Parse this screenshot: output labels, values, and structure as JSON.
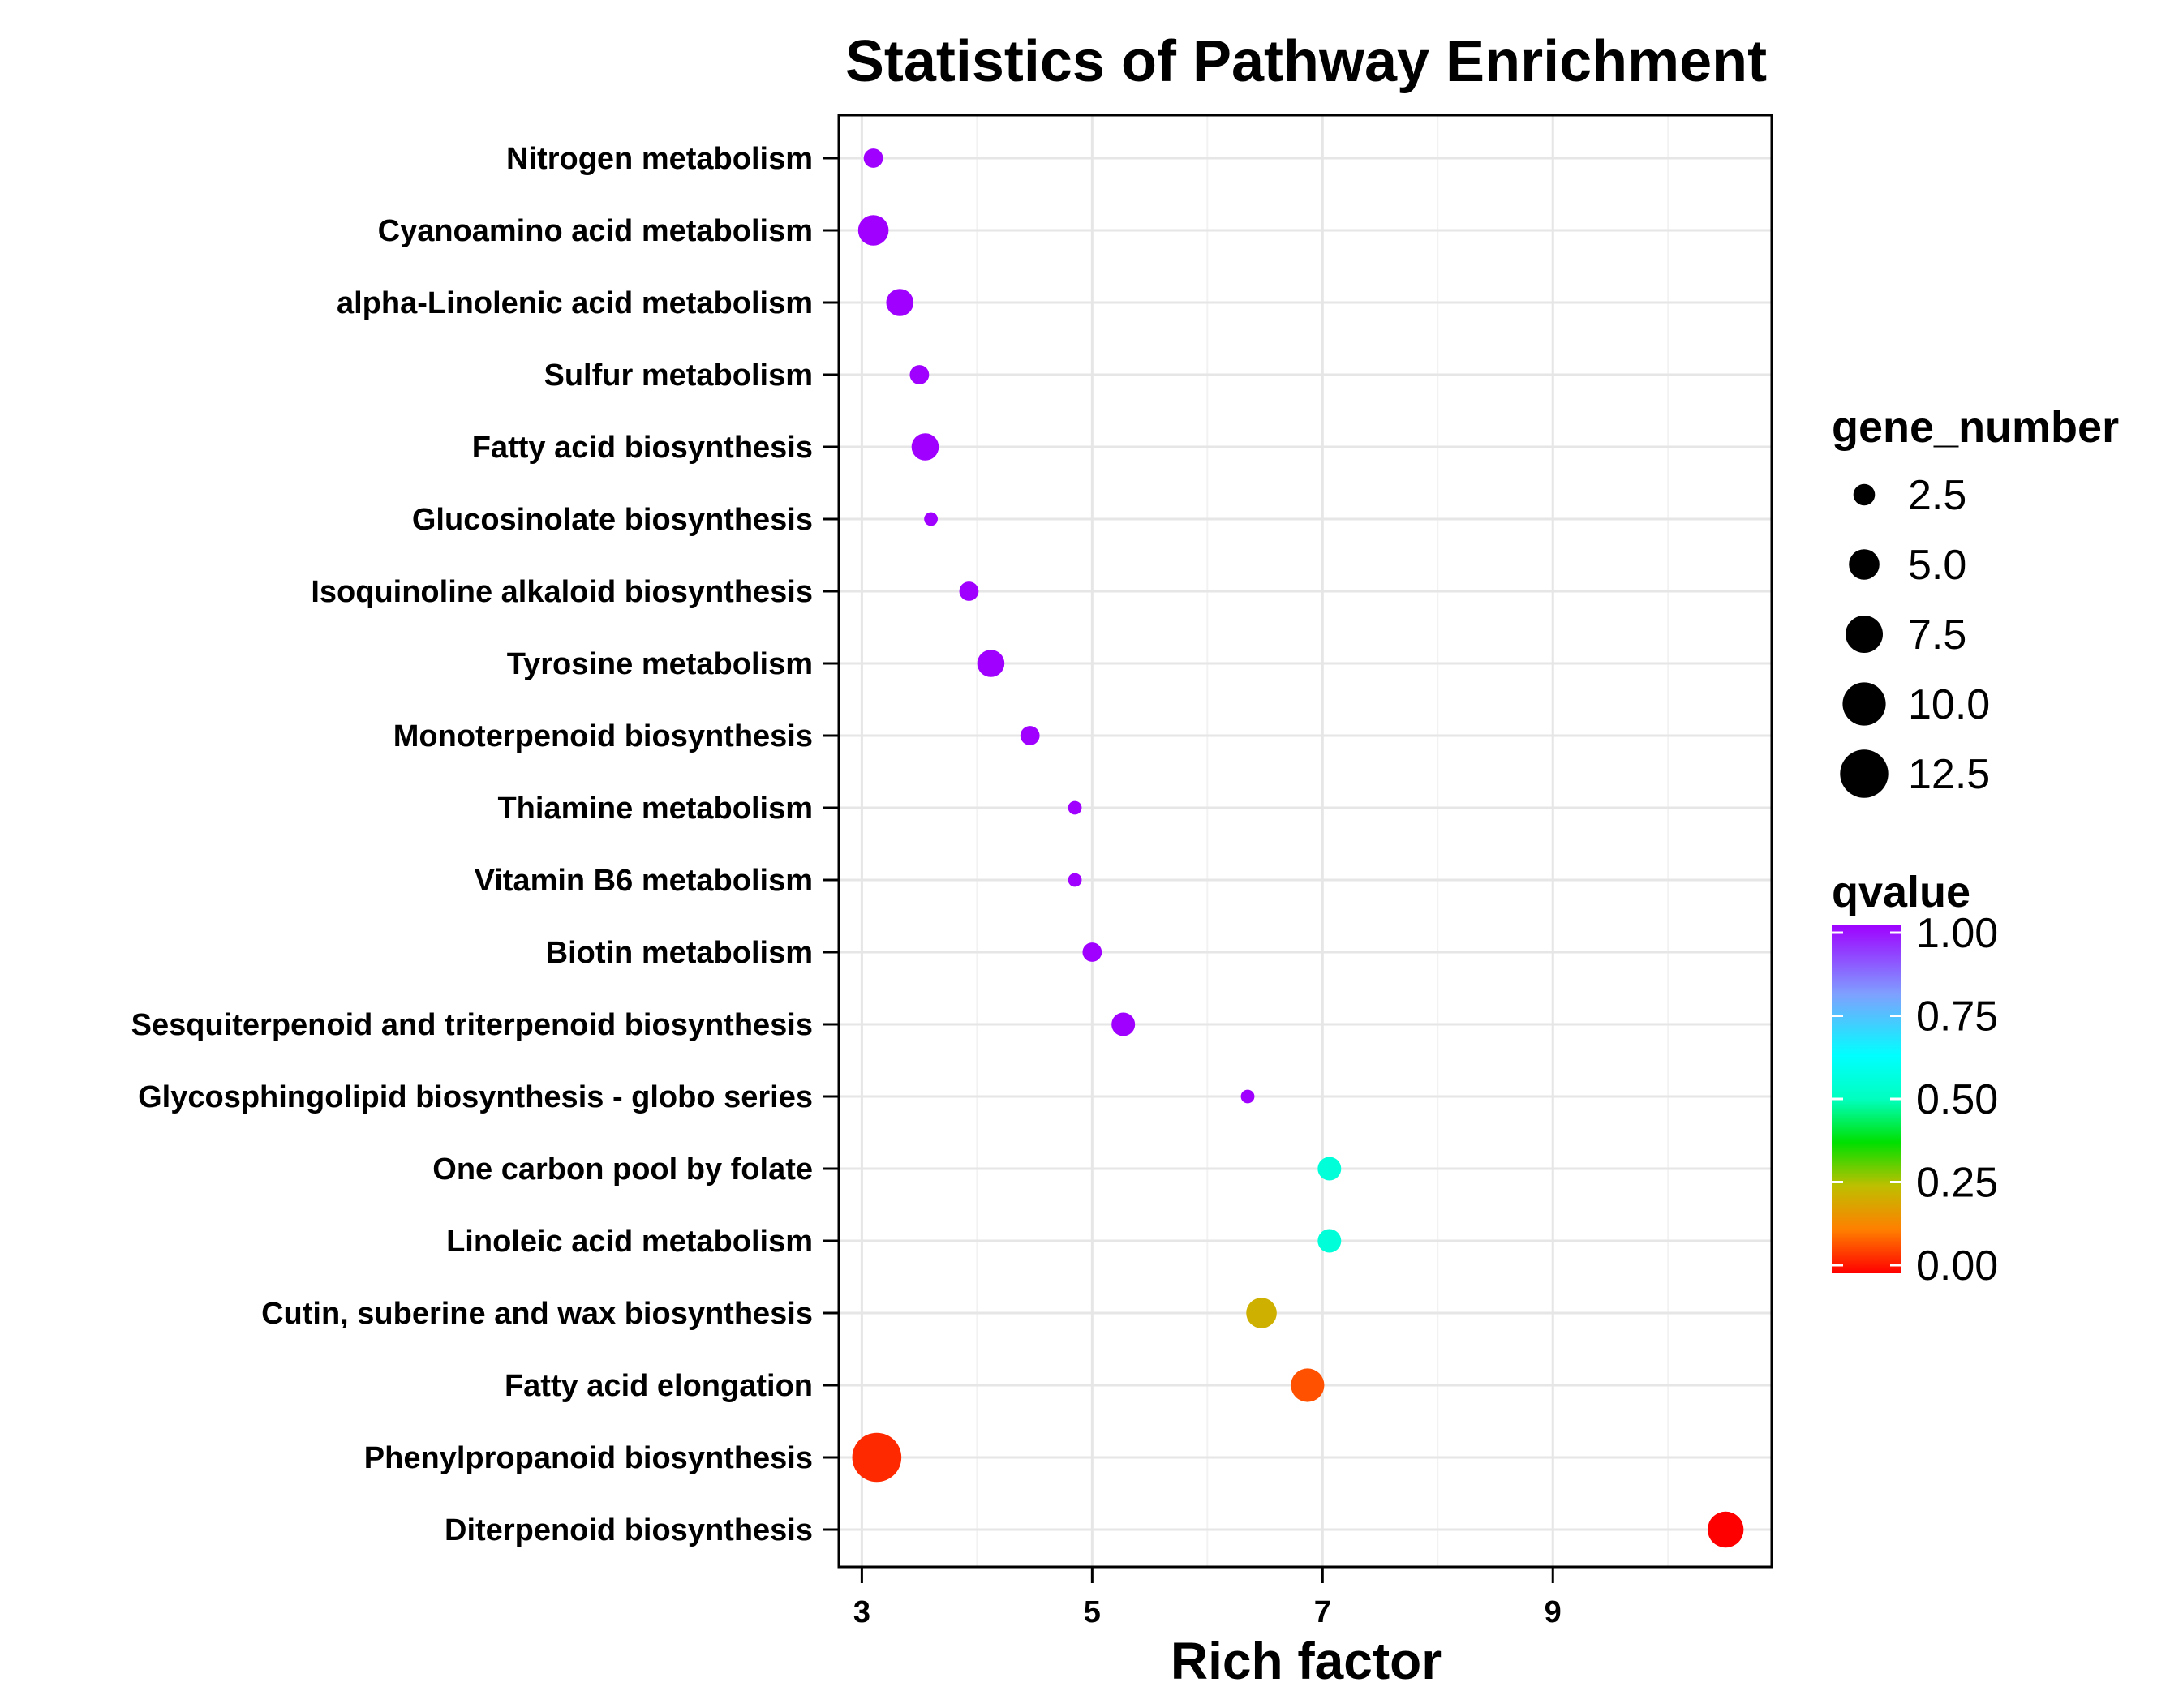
{
  "chart_data": {
    "type": "scatter",
    "title": "Statistics of Pathway Enrichment",
    "xlabel": "Rich factor",
    "ylabel": "",
    "xlim": [
      2.8,
      10.9
    ],
    "xticks": [
      3,
      5,
      7,
      9
    ],
    "grid": true,
    "points": [
      {
        "pathway": "Nitrogen metabolism",
        "rich_factor": 3.1,
        "gene_number": 2,
        "qvalue": 1.0
      },
      {
        "pathway": "Cyanoamino acid metabolism",
        "rich_factor": 3.1,
        "gene_number": 5,
        "qvalue": 1.0
      },
      {
        "pathway": "alpha-Linolenic acid metabolism",
        "rich_factor": 3.33,
        "gene_number": 4,
        "qvalue": 1.0
      },
      {
        "pathway": "Sulfur metabolism",
        "rich_factor": 3.5,
        "gene_number": 2,
        "qvalue": 1.0
      },
      {
        "pathway": "Fatty acid biosynthesis",
        "rich_factor": 3.55,
        "gene_number": 4,
        "qvalue": 1.0
      },
      {
        "pathway": "Glucosinolate biosynthesis",
        "rich_factor": 3.6,
        "gene_number": 1,
        "qvalue": 1.0
      },
      {
        "pathway": "Isoquinoline alkaloid biosynthesis",
        "rich_factor": 3.93,
        "gene_number": 2,
        "qvalue": 1.0
      },
      {
        "pathway": "Tyrosine metabolism",
        "rich_factor": 4.12,
        "gene_number": 4,
        "qvalue": 1.0
      },
      {
        "pathway": "Monoterpenoid biosynthesis",
        "rich_factor": 4.46,
        "gene_number": 2,
        "qvalue": 1.0
      },
      {
        "pathway": "Thiamine metabolism",
        "rich_factor": 4.85,
        "gene_number": 1,
        "qvalue": 1.0
      },
      {
        "pathway": "Vitamin B6 metabolism",
        "rich_factor": 4.85,
        "gene_number": 1,
        "qvalue": 1.0
      },
      {
        "pathway": "Biotin metabolism",
        "rich_factor": 5.0,
        "gene_number": 2,
        "qvalue": 1.0
      },
      {
        "pathway": "Sesquiterpenoid and triterpenoid biosynthesis",
        "rich_factor": 5.27,
        "gene_number": 3,
        "qvalue": 1.0
      },
      {
        "pathway": "Glycosphingolipid biosynthesis - globo series",
        "rich_factor": 6.35,
        "gene_number": 1,
        "qvalue": 1.0
      },
      {
        "pathway": "One carbon pool by folate",
        "rich_factor": 7.06,
        "gene_number": 3,
        "qvalue": 0.55
      },
      {
        "pathway": "Linoleic acid metabolism",
        "rich_factor": 7.06,
        "gene_number": 3,
        "qvalue": 0.55
      },
      {
        "pathway": "Cutin, suberine and wax biosynthesis",
        "rich_factor": 6.47,
        "gene_number": 5,
        "qvalue": 0.22
      },
      {
        "pathway": "Fatty acid elongation",
        "rich_factor": 6.87,
        "gene_number": 6,
        "qvalue": 0.08
      },
      {
        "pathway": "Phenylpropanoid biosynthesis",
        "rich_factor": 3.13,
        "gene_number": 13,
        "qvalue": 0.04
      },
      {
        "pathway": "Diterpenoid biosynthesis",
        "rich_factor": 10.5,
        "gene_number": 7,
        "qvalue": 0.0
      }
    ],
    "size_legend": {
      "title": "gene_number",
      "values": [
        2.5,
        5.0,
        7.5,
        10.0,
        12.5
      ],
      "labels": [
        "2.5",
        "5.0",
        "7.5",
        "10.0",
        "12.5"
      ]
    },
    "color_legend": {
      "title": "qvalue",
      "labels": [
        "1.00",
        "0.75",
        "0.50",
        "0.25",
        "0.00"
      ],
      "values": [
        1.0,
        0.75,
        0.5,
        0.25,
        0.0
      ]
    },
    "colors": {
      "q0": "#ff0000",
      "q0.125": "#ff7f00",
      "q0.25": "#bfbf00",
      "q0.375": "#00ff00",
      "q0.5": "#00ffbf",
      "q0.625": "#00ffff",
      "q0.75": "#7f9fff",
      "q1": "#9f00ff"
    }
  }
}
